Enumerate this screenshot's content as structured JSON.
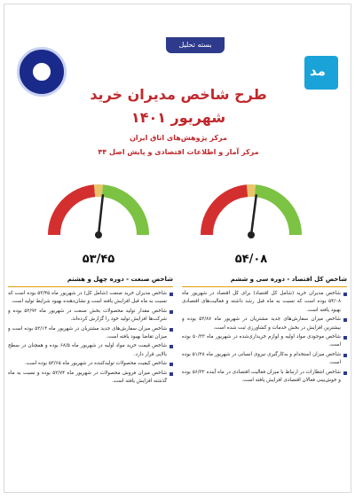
{
  "header": {
    "tab_label": "بسته تحلیل",
    "title": "طرح شاخص مدیران خرید",
    "period": "شهریور ۱۴۰۱",
    "subtitle_1": "مرکز پژوهش‌های اتاق ایران",
    "subtitle_2": "مرکز آمار و اطلاعات اقتصادی و پایش اصل ۴۴"
  },
  "gauges": [
    {
      "value_label": "۵۳/۴۵",
      "value": 53.45
    },
    {
      "value_label": "۵۴/۰۸",
      "value": 54.08
    }
  ],
  "columns": {
    "left": {
      "heading": "شاخص صنعت - دوره چهل و هشتم",
      "bullets": [
        "شاخص مدیران خرید صنعت (شامل کل) در شهریور ماه ۵۳/۴۵ بوده است که نسبت به ماه قبل افزایش یافته است و نشان‌دهنده بهبود شرایط تولید است.",
        "شاخص مقدار تولید محصولات بخش صنعت در شهریور ماه ۵۲/۹۲ بوده و شرکت‌ها افزایش تولید خود را گزارش کرده‌اند.",
        "شاخص میزان سفارش‌های جدید مشتریان در شهریور ماه ۵۲/۱۴ بوده است و میزان تقاضا بهبود یافته است.",
        "شاخص قیمت خرید مواد اولیه در شهریور ماه ۶۸/۵ بوده و همچنان در سطح بالایی قرار دارد.",
        "شاخص کیفیت محصولات تولیدکننده در شهریور ماه ۵۳/۶۵ بوده است.",
        "شاخص میزان فروش محصولات در شهریور ماه ۵۲/۷۴ بوده و نسبت به ماه گذشته افزایش یافته است."
      ]
    },
    "right": {
      "heading": "شاخص کل اقتصاد - دوره سی و ششم",
      "bullets": [
        "شاخص مدیران خرید (شامل کل اقتصاد) برای کل اقتصاد در شهریور ماه ۵۴/۰۸ بوده است که نسبت به ماه قبل رشد داشته و فعالیت‌های اقتصادی بهبود یافته است.",
        "شاخص میزان سفارش‌های جدید مشتریان در شهریور ماه ۵۳/۸۷ بوده و بیشترین افزایش در بخش خدمات و کشاورزی ثبت شده است.",
        "شاخص موجودی مواد اولیه و لوازم خریداری‌شده در شهریور ماه ۵۰/۳۳ بوده است.",
        "شاخص میزان استخدام و به‌کارگیری نیروی انسانی در شهریور ماه ۵۱/۲۸ بوده است.",
        "شاخص انتظارات در ارتباط با میزان فعالیت اقتصادی در ماه آینده ۵۶/۳۲ بوده و خوش‌بینی فعالان اقتصادی افزایش یافته است."
      ]
    }
  },
  "colors": {
    "accent_red": "#c0282c",
    "navy": "#2e3a8c",
    "gold": "#e2a10f",
    "gauge_red": "#d42f2f",
    "gauge_green": "#7cc243"
  }
}
